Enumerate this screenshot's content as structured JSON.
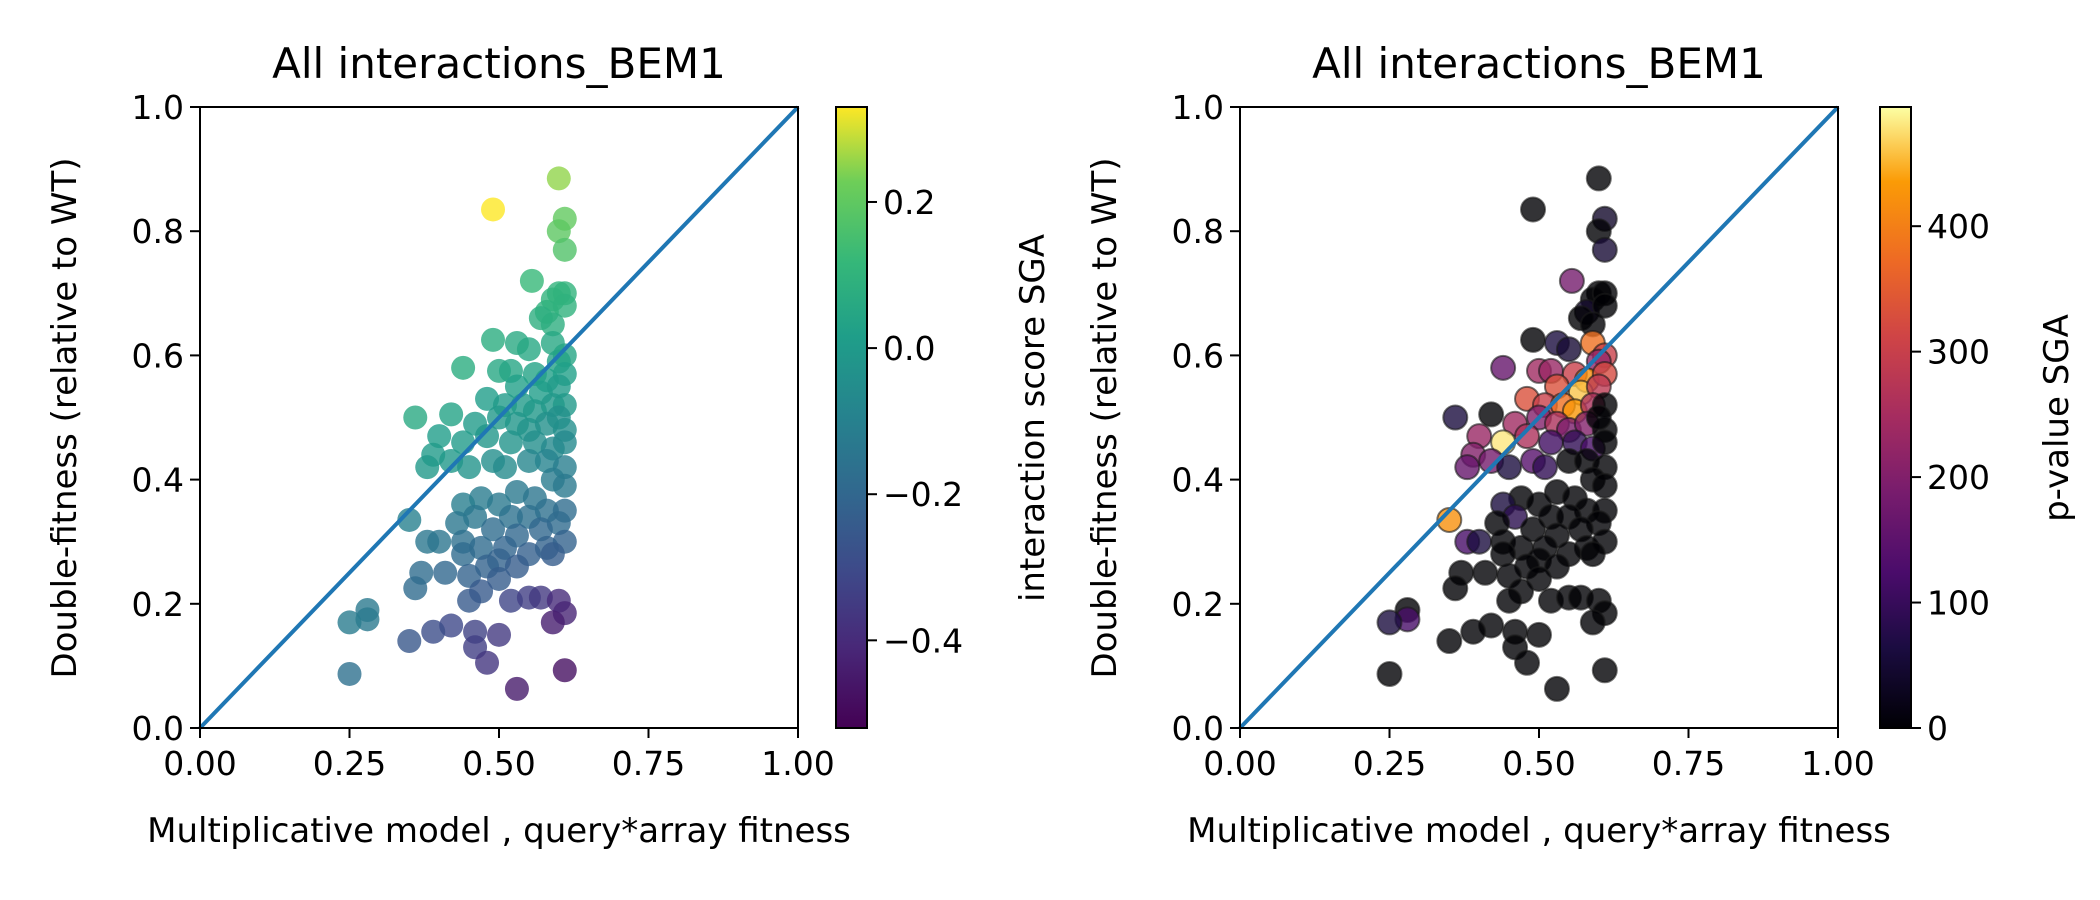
{
  "chart_data": [
    {
      "type": "scatter",
      "title": "All interactions_BEM1",
      "xlabel": "Multiplicative model , query*array fitness",
      "ylabel": "Double-fitness (relative to WT)",
      "xlim": [
        0,
        1
      ],
      "ylim": [
        0,
        1
      ],
      "x_ticks": [
        "0.00",
        "0.25",
        "0.50",
        "0.75",
        "1.00"
      ],
      "y_ticks": [
        "0.0",
        "0.2",
        "0.4",
        "0.6",
        "0.8",
        "1.0"
      ],
      "reference_line": {
        "label": "",
        "x": [
          0,
          1
        ],
        "y": [
          0,
          1
        ],
        "color": "#1f77b4"
      },
      "colorbar": {
        "label": "interaction score SGA",
        "colormap": "viridis",
        "range": [
          -0.52,
          0.33
        ],
        "ticks": [
          "−0.4",
          "−0.2",
          "0.0",
          "0.2"
        ],
        "tick_values": [
          -0.4,
          -0.2,
          0.0,
          0.2
        ]
      },
      "color_field": "score",
      "grid": false
    },
    {
      "type": "scatter",
      "title": "All interactions_BEM1",
      "xlabel": "Multiplicative model , query*array fitness",
      "ylabel": "Double-fitness (relative to WT)",
      "xlim": [
        0,
        1
      ],
      "ylim": [
        0,
        1
      ],
      "x_ticks": [
        "0.00",
        "0.25",
        "0.50",
        "0.75",
        "1.00"
      ],
      "y_ticks": [
        "0.0",
        "0.2",
        "0.4",
        "0.6",
        "0.8",
        "1.0"
      ],
      "reference_line": {
        "label": "",
        "x": [
          0,
          1
        ],
        "y": [
          0,
          1
        ],
        "color": "#1f77b4"
      },
      "colorbar": {
        "label": "p-value SGA",
        "colormap": "inferno",
        "range": [
          0,
          495
        ],
        "ticks": [
          "0",
          "100",
          "200",
          "300",
          "400"
        ],
        "tick_values": [
          0,
          100,
          200,
          300,
          400
        ]
      },
      "color_field": "pvalue",
      "grid": false
    }
  ],
  "points": [
    {
      "x": 0.6,
      "y": 0.885,
      "score": 0.25,
      "pvalue": 0
    },
    {
      "x": 0.49,
      "y": 0.835,
      "score": 0.33,
      "pvalue": 0
    },
    {
      "x": 0.61,
      "y": 0.82,
      "score": 0.2,
      "pvalue": 40
    },
    {
      "x": 0.6,
      "y": 0.8,
      "score": 0.19,
      "pvalue": 0
    },
    {
      "x": 0.61,
      "y": 0.77,
      "score": 0.17,
      "pvalue": 50
    },
    {
      "x": 0.555,
      "y": 0.72,
      "score": 0.12,
      "pvalue": 180
    },
    {
      "x": 0.6,
      "y": 0.7,
      "score": 0.1,
      "pvalue": 0
    },
    {
      "x": 0.59,
      "y": 0.69,
      "score": 0.1,
      "pvalue": 0
    },
    {
      "x": 0.61,
      "y": 0.7,
      "score": 0.1,
      "pvalue": 0
    },
    {
      "x": 0.58,
      "y": 0.67,
      "score": 0.09,
      "pvalue": 40
    },
    {
      "x": 0.57,
      "y": 0.66,
      "score": 0.08,
      "pvalue": 0
    },
    {
      "x": 0.61,
      "y": 0.68,
      "score": 0.09,
      "pvalue": 0
    },
    {
      "x": 0.59,
      "y": 0.65,
      "score": 0.08,
      "pvalue": 0
    },
    {
      "x": 0.49,
      "y": 0.625,
      "score": 0.07,
      "pvalue": 0
    },
    {
      "x": 0.53,
      "y": 0.62,
      "score": 0.06,
      "pvalue": 60
    },
    {
      "x": 0.55,
      "y": 0.61,
      "score": 0.05,
      "pvalue": 50
    },
    {
      "x": 0.59,
      "y": 0.62,
      "score": 0.05,
      "pvalue": 380
    },
    {
      "x": 0.61,
      "y": 0.6,
      "score": 0.04,
      "pvalue": 300
    },
    {
      "x": 0.6,
      "y": 0.59,
      "score": 0.03,
      "pvalue": 220
    },
    {
      "x": 0.44,
      "y": 0.58,
      "score": 0.07,
      "pvalue": 160
    },
    {
      "x": 0.5,
      "y": 0.575,
      "score": 0.05,
      "pvalue": 240
    },
    {
      "x": 0.52,
      "y": 0.575,
      "score": 0.04,
      "pvalue": 230
    },
    {
      "x": 0.56,
      "y": 0.57,
      "score": 0.03,
      "pvalue": 300
    },
    {
      "x": 0.58,
      "y": 0.56,
      "score": 0.02,
      "pvalue": 420
    },
    {
      "x": 0.61,
      "y": 0.57,
      "score": 0.02,
      "pvalue": 320
    },
    {
      "x": 0.53,
      "y": 0.55,
      "score": 0.02,
      "pvalue": 330
    },
    {
      "x": 0.57,
      "y": 0.54,
      "score": 0.01,
      "pvalue": 460
    },
    {
      "x": 0.6,
      "y": 0.55,
      "score": 0.0,
      "pvalue": 280
    },
    {
      "x": 0.48,
      "y": 0.53,
      "score": 0.01,
      "pvalue": 330
    },
    {
      "x": 0.51,
      "y": 0.52,
      "score": 0.0,
      "pvalue": 300
    },
    {
      "x": 0.54,
      "y": 0.52,
      "score": 0.0,
      "pvalue": 380
    },
    {
      "x": 0.56,
      "y": 0.51,
      "score": -0.01,
      "pvalue": 430
    },
    {
      "x": 0.59,
      "y": 0.52,
      "score": -0.01,
      "pvalue": 260
    },
    {
      "x": 0.61,
      "y": 0.52,
      "score": -0.01,
      "pvalue": 0
    },
    {
      "x": 0.42,
      "y": 0.505,
      "score": 0.03,
      "pvalue": 0
    },
    {
      "x": 0.36,
      "y": 0.5,
      "score": 0.06,
      "pvalue": 60
    },
    {
      "x": 0.46,
      "y": 0.49,
      "score": 0.0,
      "pvalue": 240
    },
    {
      "x": 0.5,
      "y": 0.5,
      "score": -0.01,
      "pvalue": 200
    },
    {
      "x": 0.53,
      "y": 0.49,
      "score": -0.02,
      "pvalue": 260
    },
    {
      "x": 0.55,
      "y": 0.48,
      "score": -0.03,
      "pvalue": 190
    },
    {
      "x": 0.58,
      "y": 0.49,
      "score": -0.04,
      "pvalue": 200
    },
    {
      "x": 0.61,
      "y": 0.48,
      "score": -0.05,
      "pvalue": 0
    },
    {
      "x": 0.6,
      "y": 0.5,
      "score": -0.04,
      "pvalue": 0
    },
    {
      "x": 0.4,
      "y": 0.47,
      "score": 0.01,
      "pvalue": 230
    },
    {
      "x": 0.44,
      "y": 0.46,
      "score": 0.0,
      "pvalue": 480
    },
    {
      "x": 0.48,
      "y": 0.47,
      "score": -0.02,
      "pvalue": 260
    },
    {
      "x": 0.52,
      "y": 0.46,
      "score": -0.03,
      "pvalue": 110
    },
    {
      "x": 0.56,
      "y": 0.46,
      "score": -0.05,
      "pvalue": 90
    },
    {
      "x": 0.59,
      "y": 0.45,
      "score": -0.07,
      "pvalue": 120
    },
    {
      "x": 0.61,
      "y": 0.46,
      "score": -0.07,
      "pvalue": 0
    },
    {
      "x": 0.39,
      "y": 0.44,
      "score": 0.0,
      "pvalue": 200
    },
    {
      "x": 0.42,
      "y": 0.43,
      "score": -0.01,
      "pvalue": 180
    },
    {
      "x": 0.45,
      "y": 0.42,
      "score": -0.03,
      "pvalue": 60
    },
    {
      "x": 0.49,
      "y": 0.43,
      "score": -0.05,
      "pvalue": 140
    },
    {
      "x": 0.51,
      "y": 0.42,
      "score": -0.06,
      "pvalue": 90
    },
    {
      "x": 0.55,
      "y": 0.43,
      "score": -0.08,
      "pvalue": 0
    },
    {
      "x": 0.58,
      "y": 0.43,
      "score": -0.09,
      "pvalue": 0
    },
    {
      "x": 0.61,
      "y": 0.42,
      "score": -0.11,
      "pvalue": 0
    },
    {
      "x": 0.38,
      "y": 0.42,
      "score": -0.01,
      "pvalue": 160
    },
    {
      "x": 0.59,
      "y": 0.4,
      "score": -0.12,
      "pvalue": 0
    },
    {
      "x": 0.61,
      "y": 0.39,
      "score": -0.13,
      "pvalue": 0
    },
    {
      "x": 0.53,
      "y": 0.38,
      "score": -0.13,
      "pvalue": 0
    },
    {
      "x": 0.56,
      "y": 0.37,
      "score": -0.15,
      "pvalue": 0
    },
    {
      "x": 0.47,
      "y": 0.37,
      "score": -0.12,
      "pvalue": 0
    },
    {
      "x": 0.44,
      "y": 0.36,
      "score": -0.11,
      "pvalue": 60
    },
    {
      "x": 0.5,
      "y": 0.36,
      "score": -0.13,
      "pvalue": 0
    },
    {
      "x": 0.58,
      "y": 0.35,
      "score": -0.17,
      "pvalue": 0
    },
    {
      "x": 0.61,
      "y": 0.35,
      "score": -0.18,
      "pvalue": 0
    },
    {
      "x": 0.46,
      "y": 0.34,
      "score": -0.14,
      "pvalue": 80
    },
    {
      "x": 0.52,
      "y": 0.34,
      "score": -0.16,
      "pvalue": 0
    },
    {
      "x": 0.55,
      "y": 0.34,
      "score": -0.17,
      "pvalue": 0
    },
    {
      "x": 0.35,
      "y": 0.335,
      "score": -0.1,
      "pvalue": 420
    },
    {
      "x": 0.43,
      "y": 0.33,
      "score": -0.14,
      "pvalue": 0
    },
    {
      "x": 0.49,
      "y": 0.32,
      "score": -0.18,
      "pvalue": 0
    },
    {
      "x": 0.6,
      "y": 0.33,
      "score": -0.19,
      "pvalue": 0
    },
    {
      "x": 0.57,
      "y": 0.32,
      "score": -0.2,
      "pvalue": 0
    },
    {
      "x": 0.53,
      "y": 0.31,
      "score": -0.2,
      "pvalue": 0
    },
    {
      "x": 0.38,
      "y": 0.3,
      "score": -0.14,
      "pvalue": 120
    },
    {
      "x": 0.4,
      "y": 0.3,
      "score": -0.15,
      "pvalue": 60
    },
    {
      "x": 0.44,
      "y": 0.3,
      "score": -0.17,
      "pvalue": 0
    },
    {
      "x": 0.47,
      "y": 0.29,
      "score": -0.19,
      "pvalue": 0
    },
    {
      "x": 0.51,
      "y": 0.29,
      "score": -0.21,
      "pvalue": 0
    },
    {
      "x": 0.58,
      "y": 0.29,
      "score": -0.22,
      "pvalue": 0
    },
    {
      "x": 0.61,
      "y": 0.3,
      "score": -0.22,
      "pvalue": 0
    },
    {
      "x": 0.44,
      "y": 0.28,
      "score": -0.19,
      "pvalue": 0
    },
    {
      "x": 0.5,
      "y": 0.27,
      "score": -0.22,
      "pvalue": 0
    },
    {
      "x": 0.55,
      "y": 0.28,
      "score": -0.23,
      "pvalue": 0
    },
    {
      "x": 0.59,
      "y": 0.28,
      "score": -0.24,
      "pvalue": 0
    },
    {
      "x": 0.48,
      "y": 0.26,
      "score": -0.22,
      "pvalue": 0
    },
    {
      "x": 0.53,
      "y": 0.26,
      "score": -0.24,
      "pvalue": 0
    },
    {
      "x": 0.37,
      "y": 0.25,
      "score": -0.18,
      "pvalue": 0
    },
    {
      "x": 0.41,
      "y": 0.25,
      "score": -0.2,
      "pvalue": 0
    },
    {
      "x": 0.45,
      "y": 0.245,
      "score": -0.22,
      "pvalue": 0
    },
    {
      "x": 0.5,
      "y": 0.24,
      "score": -0.24,
      "pvalue": 0
    },
    {
      "x": 0.36,
      "y": 0.225,
      "score": -0.19,
      "pvalue": 0
    },
    {
      "x": 0.47,
      "y": 0.22,
      "score": -0.25,
      "pvalue": 0
    },
    {
      "x": 0.45,
      "y": 0.205,
      "score": -0.25,
      "pvalue": 0
    },
    {
      "x": 0.52,
      "y": 0.205,
      "score": -0.32,
      "pvalue": 0
    },
    {
      "x": 0.55,
      "y": 0.21,
      "score": -0.34,
      "pvalue": 0
    },
    {
      "x": 0.57,
      "y": 0.21,
      "score": -0.36,
      "pvalue": 0
    },
    {
      "x": 0.6,
      "y": 0.205,
      "score": -0.4,
      "pvalue": 0
    },
    {
      "x": 0.61,
      "y": 0.185,
      "score": -0.42,
      "pvalue": 0
    },
    {
      "x": 0.28,
      "y": 0.19,
      "score": -0.13,
      "pvalue": 0
    },
    {
      "x": 0.28,
      "y": 0.175,
      "score": -0.13,
      "pvalue": 120
    },
    {
      "x": 0.25,
      "y": 0.17,
      "score": -0.12,
      "pvalue": 60
    },
    {
      "x": 0.59,
      "y": 0.17,
      "score": -0.44,
      "pvalue": 0
    },
    {
      "x": 0.42,
      "y": 0.165,
      "score": -0.31,
      "pvalue": 0
    },
    {
      "x": 0.39,
      "y": 0.155,
      "score": -0.29,
      "pvalue": 0
    },
    {
      "x": 0.46,
      "y": 0.155,
      "score": -0.33,
      "pvalue": 0
    },
    {
      "x": 0.5,
      "y": 0.15,
      "score": -0.36,
      "pvalue": 0
    },
    {
      "x": 0.35,
      "y": 0.14,
      "score": -0.26,
      "pvalue": 0
    },
    {
      "x": 0.46,
      "y": 0.13,
      "score": -0.34,
      "pvalue": 0
    },
    {
      "x": 0.48,
      "y": 0.105,
      "score": -0.37,
      "pvalue": 0
    },
    {
      "x": 0.61,
      "y": 0.093,
      "score": -0.48,
      "pvalue": 0
    },
    {
      "x": 0.25,
      "y": 0.087,
      "score": -0.17,
      "pvalue": 0
    },
    {
      "x": 0.53,
      "y": 0.063,
      "score": -0.45,
      "pvalue": 0
    }
  ]
}
